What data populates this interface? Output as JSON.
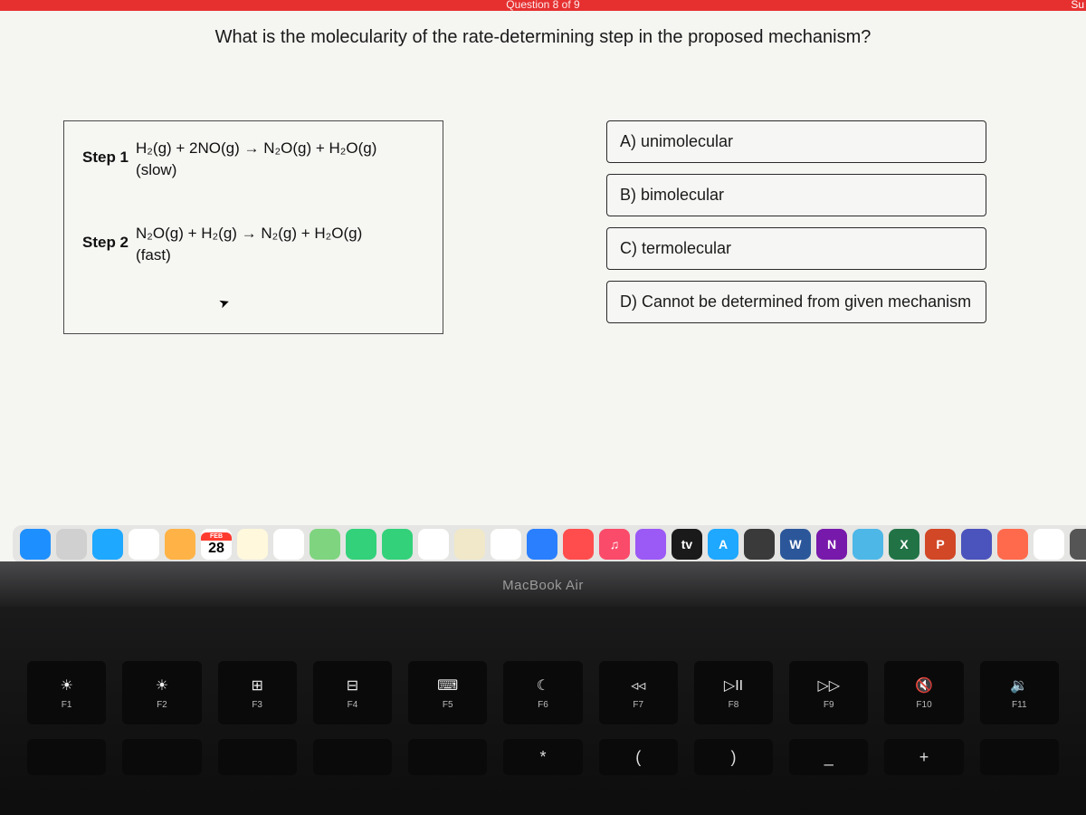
{
  "topbar": {
    "question_indicator": "Question 8 of 9",
    "right_text": "Su"
  },
  "question": "What is the molecularity of the rate-determining step in the proposed mechanism?",
  "mechanism": {
    "step1": {
      "label": "Step 1",
      "equation": "H₂(g) + 2NO(g) → N₂O(g) + H₂O(g)",
      "rate": "(slow)"
    },
    "step2": {
      "label": "Step 2",
      "equation": "N₂O(g) + H₂(g) → N₂(g) + H₂O(g)",
      "rate": "(fast)"
    }
  },
  "answers": {
    "a": "A) unimolecular",
    "b": "B) bimolecular",
    "c": "C) termolecular",
    "d": "D) Cannot be determined from given mechanism"
  },
  "dock": {
    "items": [
      {
        "name": "finder",
        "bg": "#1e8fff",
        "txt": ""
      },
      {
        "name": "launchpad",
        "bg": "#d0d0d0",
        "txt": ""
      },
      {
        "name": "safari",
        "bg": "#1ea8ff",
        "txt": ""
      },
      {
        "name": "chrome",
        "bg": "#ffffff",
        "txt": ""
      },
      {
        "name": "folder",
        "bg": "#ffb347",
        "txt": ""
      },
      {
        "name": "calendar",
        "bg": "#ffffff",
        "txt": "28",
        "txtcolor": "#000",
        "top": "FEB",
        "topbg": "#ff3b30"
      },
      {
        "name": "notes",
        "bg": "#fff8dc",
        "txt": ""
      },
      {
        "name": "reminders",
        "bg": "#ffffff",
        "txt": ""
      },
      {
        "name": "maps",
        "bg": "#7fd47f",
        "txt": ""
      },
      {
        "name": "messages",
        "bg": "#33d17a",
        "txt": ""
      },
      {
        "name": "facetime",
        "bg": "#33d17a",
        "txt": ""
      },
      {
        "name": "photos",
        "bg": "#ffffff",
        "txt": ""
      },
      {
        "name": "edit",
        "bg": "#f0e8c8",
        "txt": ""
      },
      {
        "name": "numbers",
        "bg": "#ffffff",
        "txt": ""
      },
      {
        "name": "keynote",
        "bg": "#2a7fff",
        "txt": ""
      },
      {
        "name": "safari2",
        "bg": "#ff4d4d",
        "txt": ""
      },
      {
        "name": "music",
        "bg": "#fa4b6a",
        "txt": "♫"
      },
      {
        "name": "podcasts",
        "bg": "#9b59f6",
        "txt": ""
      },
      {
        "name": "tv",
        "bg": "#1a1a1a",
        "txt": "tv",
        "txtcolor": "#fff"
      },
      {
        "name": "appstore",
        "bg": "#1ea8ff",
        "txt": "A"
      },
      {
        "name": "siri",
        "bg": "#3a3a3a",
        "txt": ""
      },
      {
        "name": "word",
        "bg": "#2b579a",
        "txt": "W"
      },
      {
        "name": "onenote",
        "bg": "#7719aa",
        "txt": "N"
      },
      {
        "name": "mail",
        "bg": "#4db7e8",
        "txt": ""
      },
      {
        "name": "excel",
        "bg": "#217346",
        "txt": "X"
      },
      {
        "name": "powerpoint",
        "bg": "#d24726",
        "txt": "P"
      },
      {
        "name": "teams",
        "bg": "#4b53bc",
        "txt": ""
      },
      {
        "name": "camera",
        "bg": "#ff6a4d",
        "txt": ""
      },
      {
        "name": "flag",
        "bg": "#ffffff",
        "txt": ""
      },
      {
        "name": "other",
        "bg": "#555",
        "txt": ""
      },
      {
        "name": "trash",
        "bg": "#888",
        "txt": ""
      }
    ]
  },
  "bezel": {
    "label": "MacBook Air"
  },
  "keyboard": {
    "fn": [
      {
        "sym": "☀",
        "lbl": "F1"
      },
      {
        "sym": "☀",
        "lbl": "F2"
      },
      {
        "sym": "⊞",
        "lbl": "F3"
      },
      {
        "sym": "⊟",
        "lbl": "F4"
      },
      {
        "sym": "⌨",
        "lbl": "F5"
      },
      {
        "sym": "☾",
        "lbl": "F6"
      },
      {
        "sym": "◃◃",
        "lbl": "F7"
      },
      {
        "sym": "▷II",
        "lbl": "F8"
      },
      {
        "sym": "▷▷",
        "lbl": "F9"
      },
      {
        "sym": "🔇",
        "lbl": "F10"
      },
      {
        "sym": "🔉",
        "lbl": "F11"
      }
    ],
    "num": [
      "",
      "",
      "",
      "",
      "",
      "*",
      "(",
      ")",
      "_",
      "+",
      ""
    ]
  },
  "colors": {
    "topbar_bg": "#e63030",
    "screen_bg": "#f5f5f2",
    "border": "#2a2a2a",
    "text": "#1a1a1a"
  }
}
